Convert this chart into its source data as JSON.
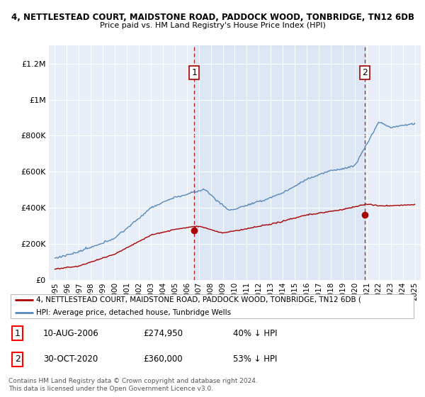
{
  "title1": "4, NETTLESTEAD COURT, MAIDSTONE ROAD, PADDOCK WOOD, TONBRIDGE, TN12 6DB",
  "title2": "Price paid vs. HM Land Registry's House Price Index (HPI)",
  "hpi_color": "#5588bb",
  "price_color": "#aa0000",
  "sale1_date": 2006.62,
  "sale1_price": 274950,
  "sale2_date": 2020.83,
  "sale2_price": 360000,
  "legend_line1": "4, NETTLESTEAD COURT, MAIDSTONE ROAD, PADDOCK WOOD, TONBRIDGE, TN12 6DB (",
  "legend_line2": "HPI: Average price, detached house, Tunbridge Wells",
  "annotation1_date": "10-AUG-2006",
  "annotation1_price": "£274,950",
  "annotation1_pct": "40% ↓ HPI",
  "annotation2_date": "30-OCT-2020",
  "annotation2_price": "£360,000",
  "annotation2_pct": "53% ↓ HPI",
  "footer": "Contains HM Land Registry data © Crown copyright and database right 2024.\nThis data is licensed under the Open Government Licence v3.0.",
  "bg_color": "#ffffff",
  "plot_bg_color": "#e8eef8",
  "shade_color": "#dde8f5",
  "ylim": [
    0,
    1300000
  ],
  "yticks": [
    0,
    200000,
    400000,
    600000,
    800000,
    1000000,
    1200000
  ],
  "xlim_start": 1994.5,
  "xlim_end": 2025.5
}
